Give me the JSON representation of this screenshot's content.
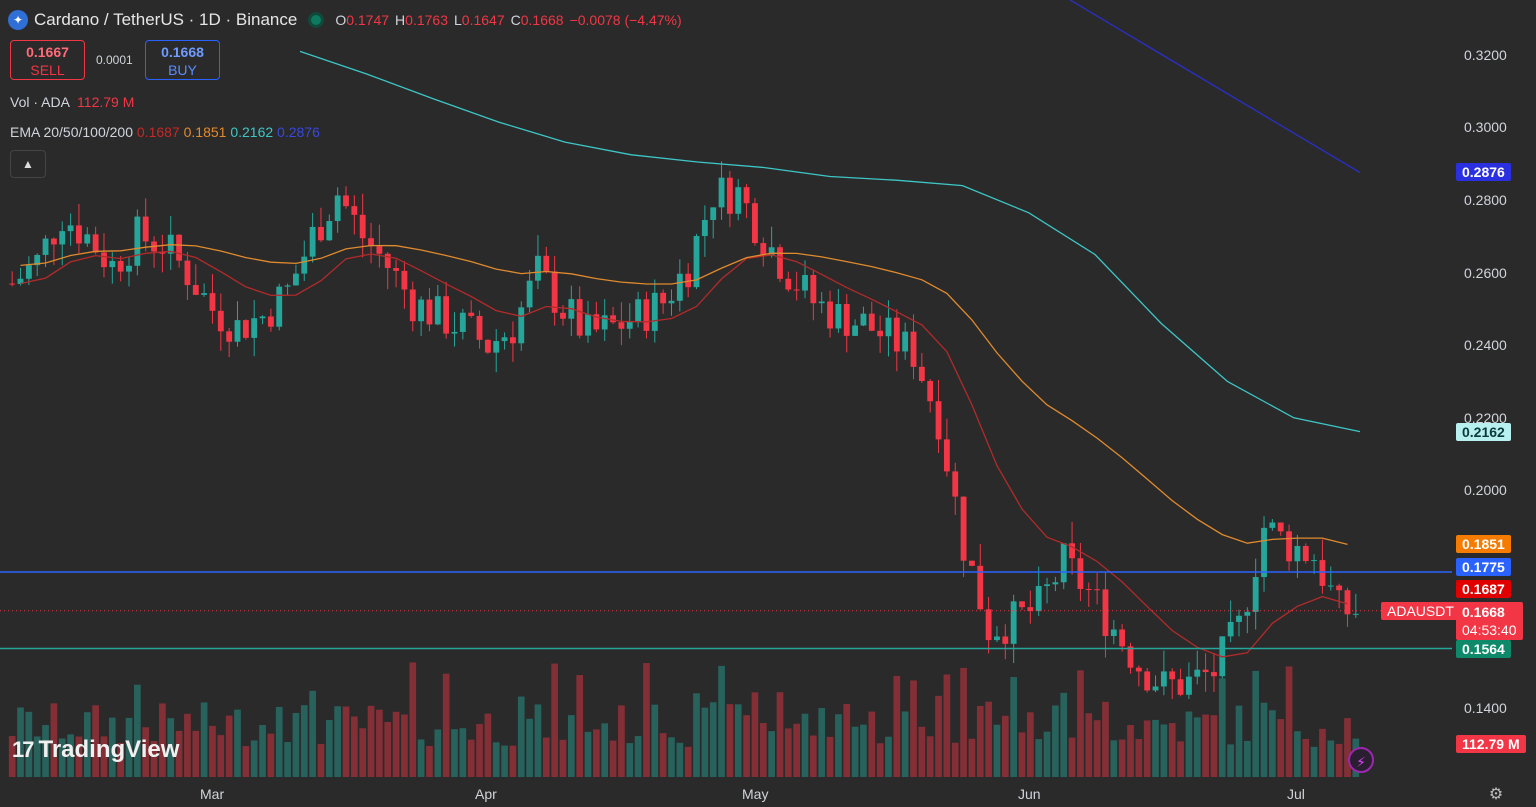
{
  "header": {
    "title": "Cardano / TetherUS · 1D · Binance",
    "open_label": "O",
    "open": "0.1747",
    "high_label": "H",
    "high": "0.1763",
    "low_label": "L",
    "low": "0.1647",
    "close_label": "C",
    "close": "0.1668",
    "change": "−0.0078 (−4.47%)"
  },
  "trade": {
    "sell_price": "0.1667",
    "sell_label": "SELL",
    "spread": "0.0001",
    "buy_price": "0.1668",
    "buy_label": "BUY"
  },
  "indicators": {
    "vol_label": "Vol · ADA",
    "vol_value": "112.79 M",
    "ema_label": "EMA 20/50/100/200",
    "ema20": "0.1687",
    "ema50": "0.1851",
    "ema100": "0.2162",
    "ema200": "0.2876"
  },
  "collapse_icon": "chevron-up-icon",
  "price_axis": [
    "0.3200",
    "0.3000",
    "0.2800",
    "0.2600",
    "0.2400",
    "0.2200",
    "0.2000",
    "0.1400"
  ],
  "tags": {
    "ema200": "0.2876",
    "ema100": "0.2162",
    "ema50": "0.1851",
    "hline_upper": "0.1775",
    "ema20": "0.1687",
    "symbol": "ADAUSDT",
    "last": "0.1668",
    "countdown": "04:53:40",
    "hline_lower": "0.1564",
    "volume": "112.79 M"
  },
  "time_axis": [
    "Mar",
    "Apr",
    "May",
    "Jun",
    "Jul"
  ],
  "branding": "TradingView",
  "colors": {
    "background": "#2a2a2a",
    "up": "#26a69a",
    "down": "#f23645",
    "ema20": "#b22a2a",
    "ema50": "#e08a2e",
    "ema100": "#3ec6c6",
    "ema200": "#2a2fc8",
    "hline_upper": "#2962ff",
    "hline_lower": "#26a69a"
  },
  "chart_data": {
    "type": "candlestick",
    "symbol": "ADAUSDT",
    "interval": "1D",
    "ylim": [
      0.133,
      0.333
    ],
    "horizontal_lines": [
      0.1775,
      0.1564
    ],
    "ema_last": {
      "ema20": 0.1687,
      "ema50": 0.1851,
      "ema100": 0.2162,
      "ema200": 0.2876
    },
    "series": [
      {
        "name": "EMA 100",
        "values": [
          0.321,
          0.3148,
          0.308,
          0.3015,
          0.296,
          0.2925,
          0.2905,
          0.289,
          0.2865,
          0.2855,
          0.284,
          0.2765,
          0.265,
          0.246,
          0.23,
          0.22,
          0.2162
        ]
      }
    ],
    "ohlc_close_trend": [
      0.257,
      0.263,
      0.276,
      0.27,
      0.262,
      0.27,
      0.268,
      0.26,
      0.25,
      0.245,
      0.248,
      0.255,
      0.27,
      0.282,
      0.27,
      0.262,
      0.252,
      0.248,
      0.245,
      0.24,
      0.245,
      0.26,
      0.25,
      0.243,
      0.245,
      0.248,
      0.252,
      0.262,
      0.282,
      0.282,
      0.27,
      0.26,
      0.252,
      0.248,
      0.246,
      0.242,
      0.238,
      0.22,
      0.185,
      0.162,
      0.164,
      0.168,
      0.18,
      0.172,
      0.162,
      0.152,
      0.146,
      0.147,
      0.15,
      0.162,
      0.19,
      0.185,
      0.182,
      0.1668
    ],
    "volume_unit": "ADA"
  }
}
